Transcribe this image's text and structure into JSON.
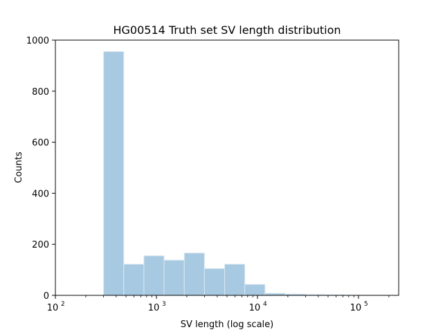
{
  "chart_data": {
    "type": "bar",
    "title": "HG00514 Truth set SV length distribution",
    "xlabel": "SV length (log scale)",
    "ylabel": "Counts",
    "x_scale": "log",
    "xlim": [
      100,
      250000
    ],
    "ylim": [
      0,
      1000
    ],
    "grid": false,
    "bar_color": "#a7c9e1",
    "bar_edge_color": "#dce9f2",
    "x_major_ticks": [
      {
        "value": 100,
        "label": "10",
        "exp": "2"
      },
      {
        "value": 1000,
        "label": "10",
        "exp": "3"
      },
      {
        "value": 10000,
        "label": "10",
        "exp": "4"
      },
      {
        "value": 100000,
        "label": "10",
        "exp": "5"
      }
    ],
    "y_ticks": [
      {
        "value": 0,
        "label": "0"
      },
      {
        "value": 200,
        "label": "200"
      },
      {
        "value": 400,
        "label": "400"
      },
      {
        "value": 600,
        "label": "600"
      },
      {
        "value": 800,
        "label": "800"
      },
      {
        "value": 1000,
        "label": "1000"
      }
    ],
    "bins": [
      {
        "x0": 300,
        "x1": 475,
        "count": 955
      },
      {
        "x0": 475,
        "x1": 752,
        "count": 122
      },
      {
        "x0": 752,
        "x1": 1191,
        "count": 155
      },
      {
        "x0": 1191,
        "x1": 1887,
        "count": 138
      },
      {
        "x0": 1887,
        "x1": 2988,
        "count": 166
      },
      {
        "x0": 2988,
        "x1": 4732,
        "count": 105
      },
      {
        "x0": 4732,
        "x1": 7494,
        "count": 122
      },
      {
        "x0": 7494,
        "x1": 11869,
        "count": 43
      },
      {
        "x0": 11869,
        "x1": 18797,
        "count": 8
      },
      {
        "x0": 18797,
        "x1": 29770,
        "count": 5
      },
      {
        "x0": 29770,
        "x1": 47148,
        "count": 3
      },
      {
        "x0": 47148,
        "x1": 74670,
        "count": 2
      },
      {
        "x0": 74670,
        "x1": 118260,
        "count": 1
      },
      {
        "x0": 118260,
        "x1": 187290,
        "count": 1
      }
    ]
  }
}
